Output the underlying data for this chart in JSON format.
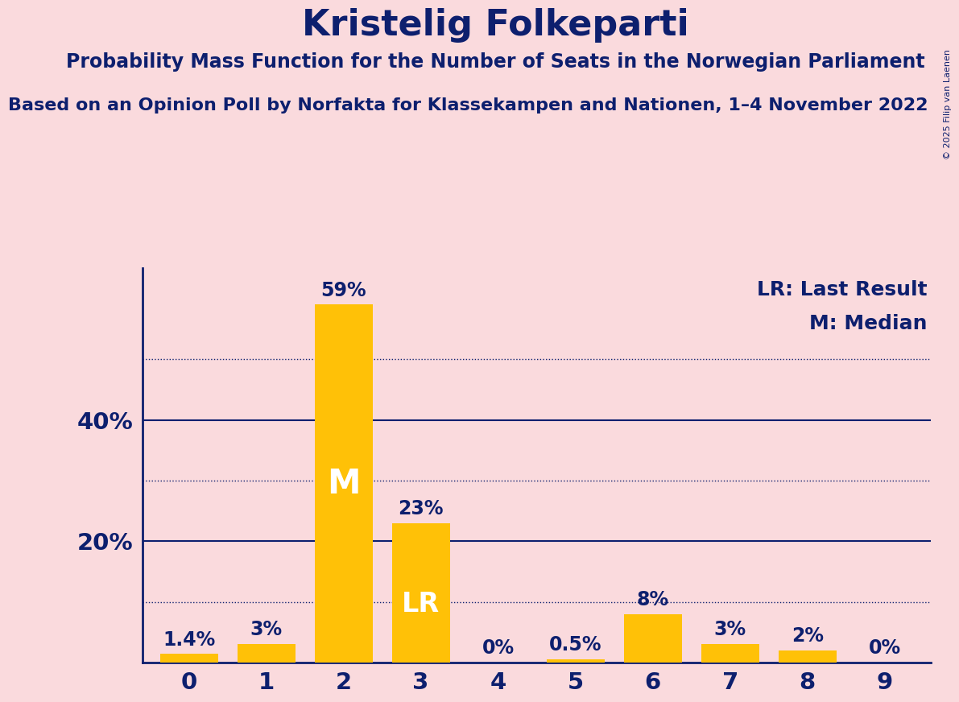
{
  "title": "Kristelig Folkeparti",
  "subtitle": "Probability Mass Function for the Number of Seats in the Norwegian Parliament",
  "subtitle2": "Based on an Opinion Poll by Norfakta for Klassekampen and Nationen, 1–4 November 2022",
  "copyright": "© 2025 Filip van Laenen",
  "categories": [
    0,
    1,
    2,
    3,
    4,
    5,
    6,
    7,
    8,
    9
  ],
  "values": [
    1.4,
    3.0,
    59.0,
    23.0,
    0.0,
    0.5,
    8.0,
    3.0,
    2.0,
    0.0
  ],
  "bar_color": "#FFC107",
  "background_color": "#FADADD",
  "text_color": "#0D1F6E",
  "bar_labels": [
    "1.4%",
    "3%",
    "59%",
    "23%",
    "0%",
    "0.5%",
    "8%",
    "3%",
    "2%",
    "0%"
  ],
  "median_bar": 2,
  "lr_bar": 3,
  "median_label": "M",
  "lr_label": "LR",
  "legend_lr": "LR: Last Result",
  "legend_m": "M: Median",
  "dotted_lines": [
    10,
    30,
    50
  ],
  "solid_lines": [
    20,
    40
  ],
  "ylim": [
    0,
    65
  ],
  "title_fontsize": 32,
  "subtitle_fontsize": 17,
  "subtitle2_fontsize": 16,
  "bar_label_fontsize": 17,
  "tick_fontsize": 21,
  "ytick_label_fontsize": 21,
  "legend_fontsize": 18,
  "median_fontsize": 30,
  "lr_fontsize": 24
}
